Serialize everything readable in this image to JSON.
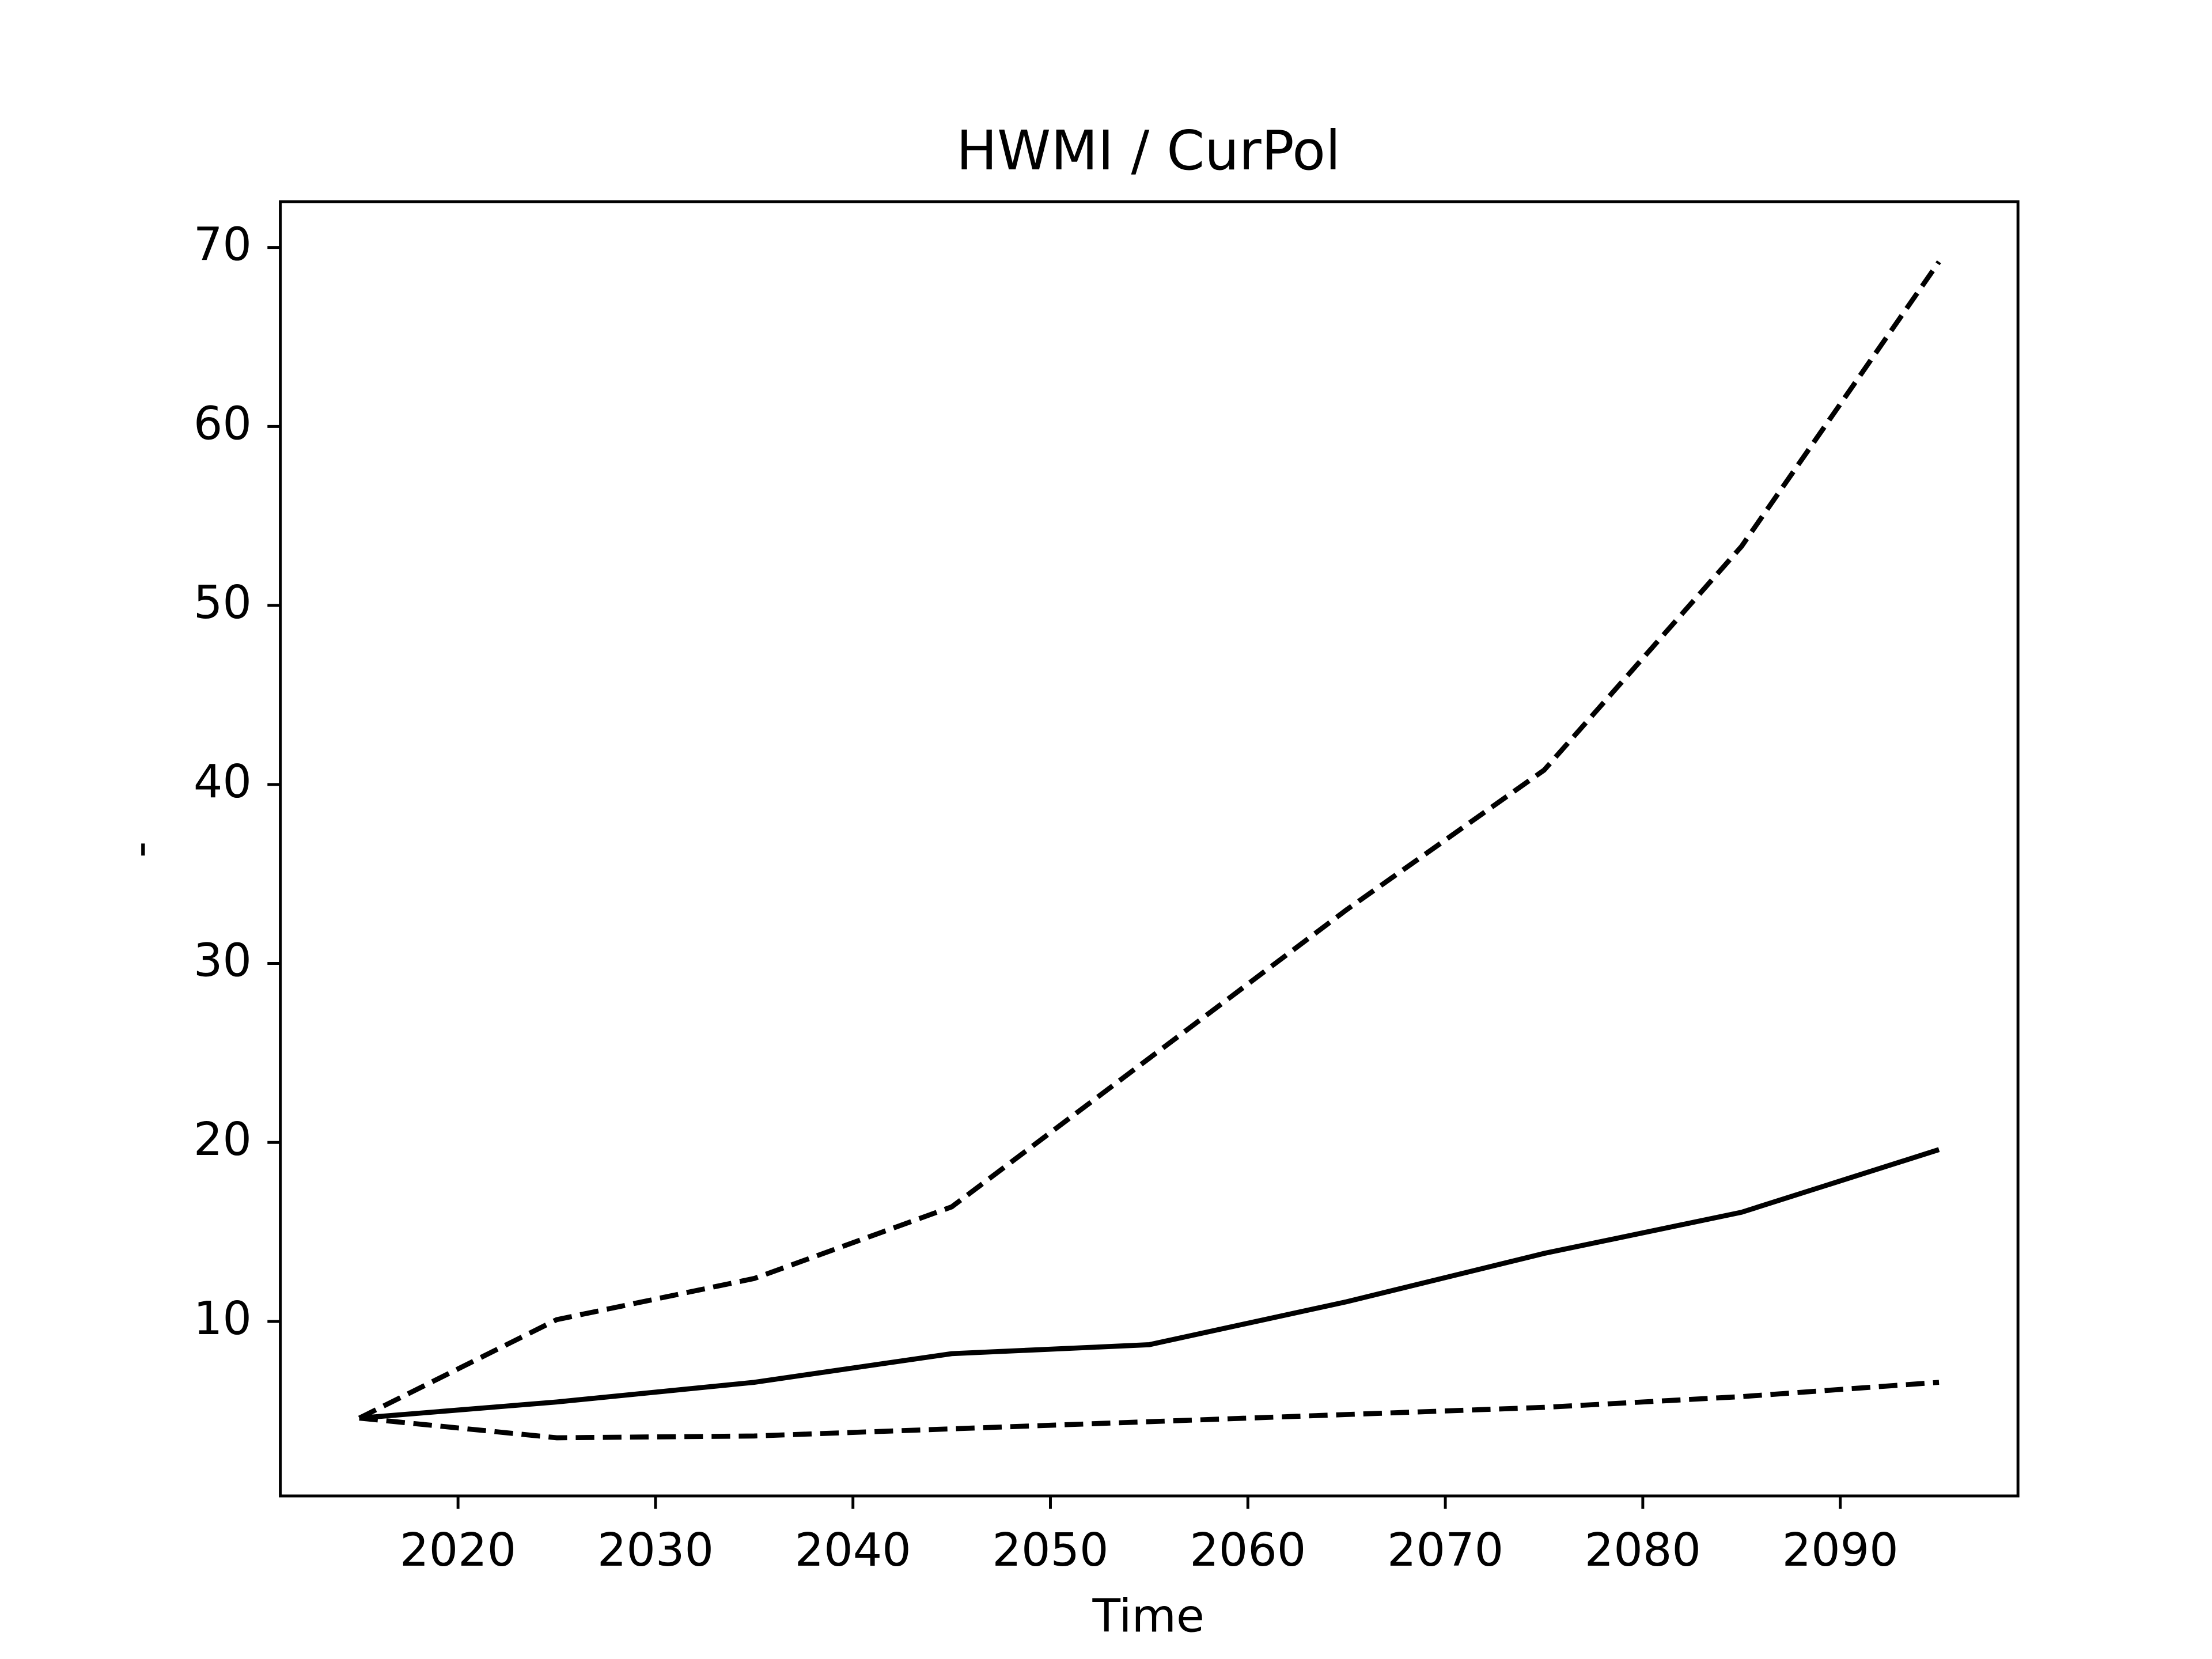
{
  "chart_data": {
    "type": "line",
    "title": "HWMI / CurPol",
    "x_label": "Time",
    "y_label": "-",
    "x": [
      2015,
      2025,
      2035,
      2045,
      2055,
      2065,
      2075,
      2085,
      2095
    ],
    "series": [
      {
        "color": "#000000",
        "dash": "solid",
        "values": [
          4.6,
          5.5,
          6.6,
          8.2,
          8.7,
          11.1,
          13.8,
          16.1,
          19.6
        ]
      },
      {
        "color": "#000000",
        "dash": "dashed",
        "values": [
          4.6,
          10.1,
          12.4,
          16.4,
          24.7,
          33.0,
          40.8,
          53.3,
          69.2
        ]
      },
      {
        "color": "#000000",
        "dash": "dashed",
        "values": [
          4.6,
          3.5,
          3.6,
          4.0,
          4.4,
          4.8,
          5.2,
          5.8,
          6.6
        ]
      }
    ],
    "xlim": [
      2011,
      2099
    ],
    "xticks": [
      2020,
      2030,
      2040,
      2050,
      2060,
      2070,
      2080,
      2090
    ],
    "ylim": [
      0.25,
      72.56
    ],
    "yticks": [
      10,
      20,
      30,
      40,
      50,
      60,
      70
    ],
    "grid": false
  }
}
